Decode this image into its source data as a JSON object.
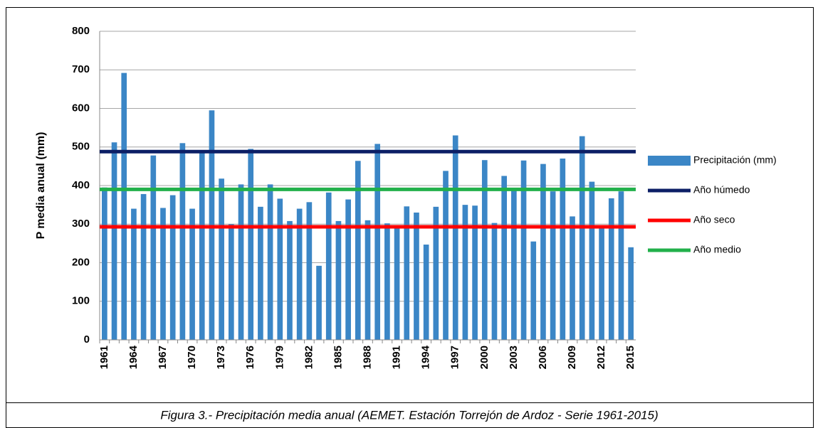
{
  "chart_data": {
    "type": "bar",
    "y_label": "P media anual (mm)",
    "caption": "Figura 3.- Precipitación media anual (AEMET. Estación Torrejón de Ardoz - Serie 1961-2015)",
    "categories": [
      "1961",
      null,
      null,
      "1964",
      null,
      null,
      "1967",
      null,
      null,
      "1970",
      null,
      null,
      "1973",
      null,
      null,
      "1976",
      null,
      null,
      "1979",
      null,
      null,
      "1982",
      null,
      null,
      "1985",
      null,
      null,
      "1988",
      null,
      null,
      "1991",
      null,
      null,
      "1994",
      null,
      null,
      "1997",
      null,
      null,
      "2000",
      null,
      null,
      "2003",
      null,
      null,
      "2006",
      null,
      null,
      "2009",
      null,
      null,
      "2012",
      null,
      null,
      "2015"
    ],
    "series": [
      {
        "name": "Precipitación (mm)",
        "color": "#3b86c6",
        "values": [
          395,
          512,
          692,
          340,
          378,
          478,
          342,
          375,
          510,
          340,
          488,
          595,
          418,
          300,
          403,
          495,
          345,
          403,
          366,
          308,
          340,
          357,
          192,
          382,
          308,
          364,
          464,
          310,
          508,
          302,
          290,
          346,
          330,
          247,
          345,
          438,
          530,
          350,
          348,
          466,
          303,
          425,
          393,
          465,
          255,
          456,
          385,
          470,
          320,
          528,
          410,
          290,
          367,
          385,
          240
        ]
      }
    ],
    "reference_lines": [
      {
        "name": "Año húmedo",
        "color": "#0c1f66",
        "value": 488
      },
      {
        "name": "Año seco",
        "color": "#ff0000",
        "value": 293
      },
      {
        "name": "Año medio",
        "color": "#22b04b",
        "value": 390
      }
    ],
    "ylim": [
      0,
      800
    ],
    "yticks": [
      0,
      100,
      200,
      300,
      400,
      500,
      600,
      700,
      800
    ],
    "grid": true
  }
}
